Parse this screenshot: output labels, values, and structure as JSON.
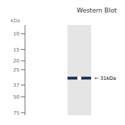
{
  "chart_data": {
    "type": "band",
    "title": "Western Blot",
    "ylabel": "kDa",
    "log": "y",
    "ylim": [
      80,
      8
    ],
    "yticks": [
      10,
      15,
      20,
      25,
      37,
      50,
      75
    ],
    "values": [
      31
    ],
    "color": "#1a2a5a",
    "annotations": [
      {
        "text": "← 31kDa",
        "y": 31
      }
    ]
  }
}
